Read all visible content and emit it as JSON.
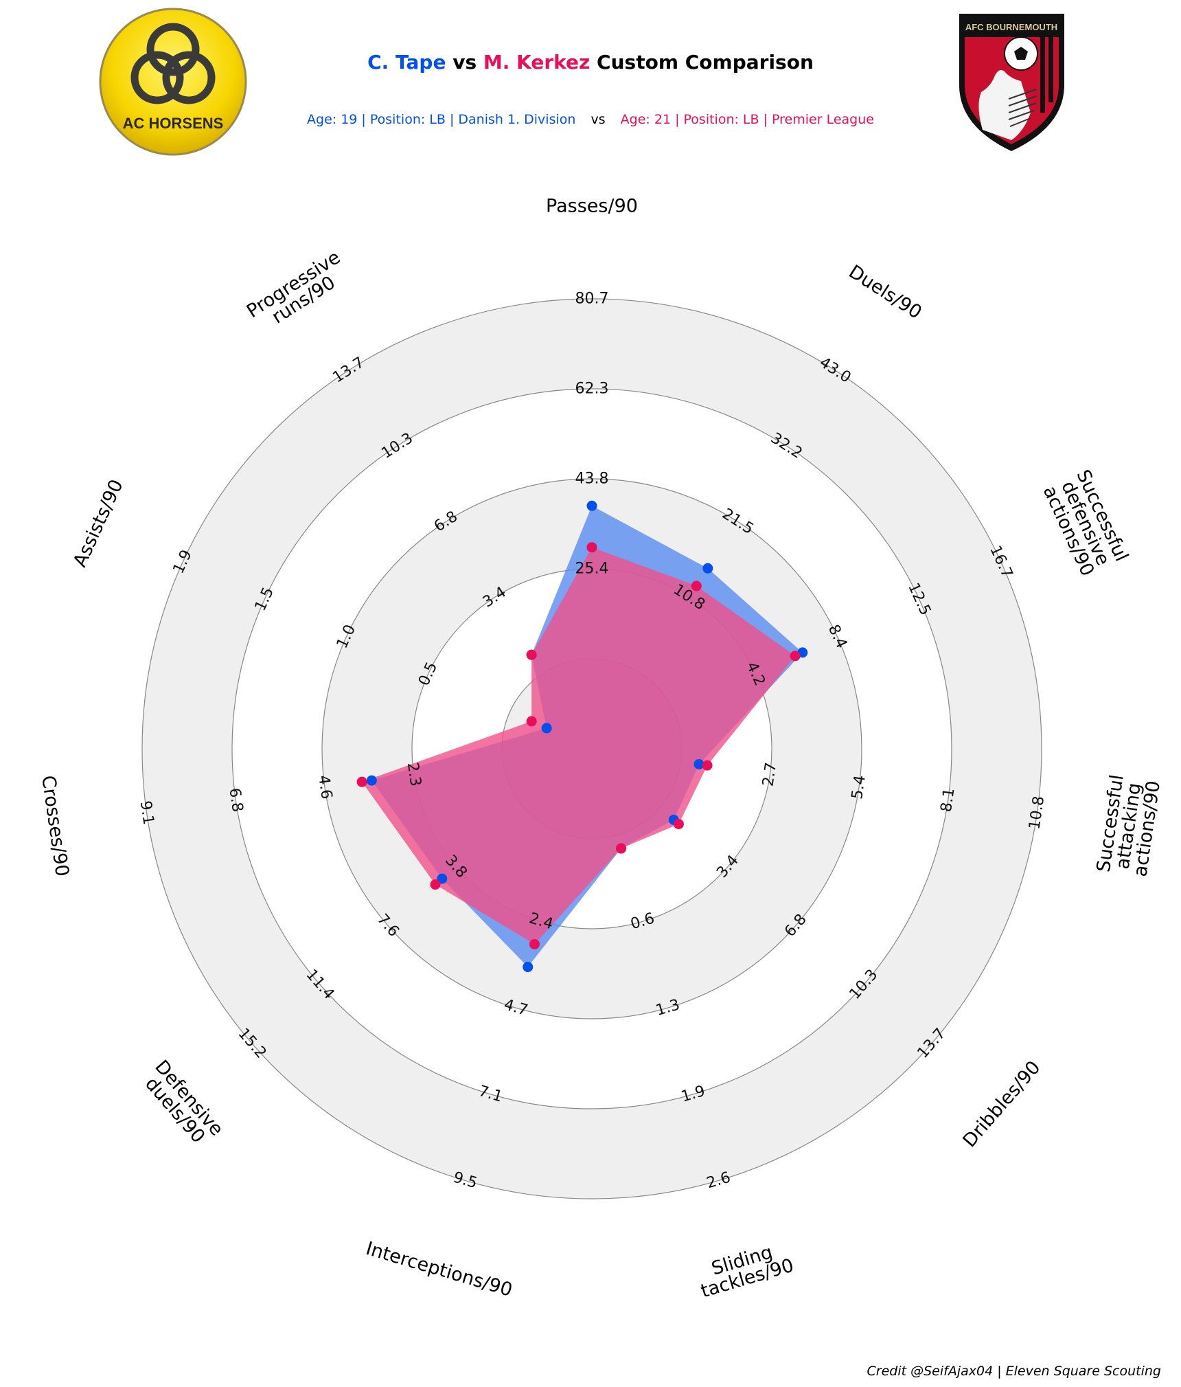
{
  "title": {
    "player1": "C. Tape",
    "vs": "vs",
    "player2": "M. Kerkez",
    "suffix": "Custom Comparison"
  },
  "subtitle": {
    "player1": "Age: 19 | Position: LB | Danish 1. Division",
    "vs": "vs",
    "player2": "Age: 21 | Position: LB | Premier League"
  },
  "logos": {
    "left": {
      "name": "AC Horsens",
      "text": "AC HORSENS",
      "colors": [
        "#f7d500",
        "#333333"
      ]
    },
    "right": {
      "name": "AFC Bournemouth",
      "text": "AFC BOURNEMOUTH",
      "colors": [
        "#c8102e",
        "#000000"
      ]
    }
  },
  "colors": {
    "player1": "#0050f0",
    "player2": "#eb0d5a",
    "player1_fill": "#5a8cf0",
    "player2_fill": "#f0508a",
    "ring_band": "#efefef",
    "ring_line": "#888888"
  },
  "credit": "Credit @SeifAjax04 | Eleven Square Scouting",
  "chart_data": {
    "type": "radar",
    "categories": [
      "Passes/90",
      "Duels/90",
      "Successful defensive actions/90",
      "Successful attacking actions/90",
      "Dribbles/90",
      "Sliding tackles/90",
      "Interceptions/90",
      "Defensive duels/90",
      "Crosses/90",
      "Assists/90",
      "Progressive runs/90"
    ],
    "tick_labels": [
      [
        "",
        "25.4",
        "43.8",
        "62.3",
        "80.7"
      ],
      [
        "",
        "10.8",
        "21.5",
        "32.2",
        "43.0"
      ],
      [
        "",
        "4.2",
        "8.4",
        "12.5",
        "16.7"
      ],
      [
        "",
        "2.7",
        "5.4",
        "8.1",
        "10.8"
      ],
      [
        "",
        "3.4",
        "6.8",
        "10.3",
        "13.7"
      ],
      [
        "",
        "0.6",
        "1.3",
        "1.9",
        "2.6"
      ],
      [
        "",
        "2.4",
        "4.7",
        "7.1",
        "9.5"
      ],
      [
        "",
        "3.8",
        "7.6",
        "11.4",
        "15.2"
      ],
      [
        "",
        "2.3",
        "4.6",
        "6.8",
        "9.1"
      ],
      [
        "",
        "0.5",
        "1.0",
        "1.5",
        "1.9"
      ],
      [
        "",
        "3.4",
        "6.8",
        "10.3",
        "13.7"
      ]
    ],
    "ranges": [
      [
        7.0,
        80.7
      ],
      [
        0.0,
        43.0
      ],
      [
        0.0,
        16.7
      ],
      [
        0.0,
        10.8
      ],
      [
        0.0,
        13.7
      ],
      [
        0.0,
        2.6
      ],
      [
        0.0,
        9.5
      ],
      [
        0.0,
        15.2
      ],
      [
        0.0,
        9.1
      ],
      [
        0.0,
        1.9
      ],
      [
        0.0,
        13.7
      ]
    ],
    "series": [
      {
        "name": "C. Tape",
        "values": [
          46.8,
          20.5,
          8.6,
          2.6,
          3.3,
          0.6,
          4.8,
          6.7,
          4.5,
          0.21,
          3.4
        ]
      },
      {
        "name": "M. Kerkez",
        "values": [
          40.0,
          18.5,
          8.3,
          2.8,
          3.5,
          0.6,
          4.3,
          7.0,
          4.7,
          0.28,
          3.4
        ]
      }
    ]
  }
}
